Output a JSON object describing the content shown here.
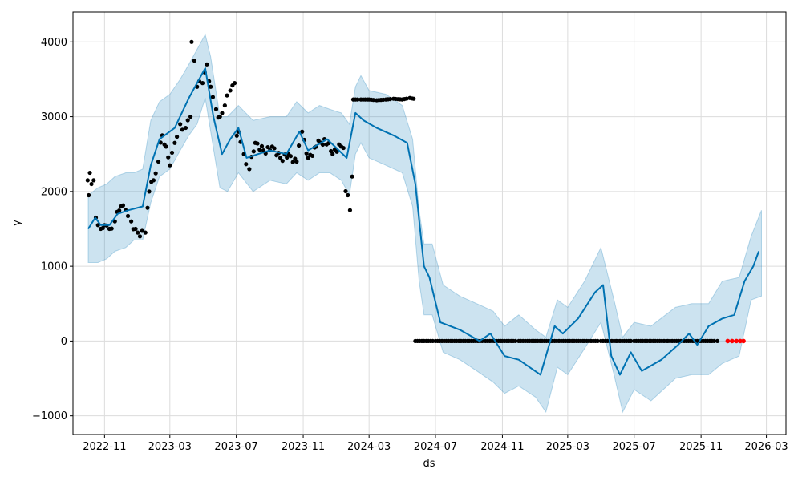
{
  "chart_data": {
    "type": "line",
    "title": "",
    "xlabel": "ds",
    "ylabel": "y",
    "grid": true,
    "legend": "none",
    "xlim": [
      "2022-09-04",
      "2026-04-06"
    ],
    "ylim": [
      -1250,
      4400
    ],
    "x_tick_labels": [
      "2022-11",
      "2023-03",
      "2023-07",
      "2023-11",
      "2024-03",
      "2024-07",
      "2024-11",
      "2025-03",
      "2025-07",
      "2025-11",
      "2026-03"
    ],
    "y_tick_values": [
      -1000,
      0,
      1000,
      2000,
      3000,
      4000
    ],
    "y_tick_labels": [
      "−1000",
      "0",
      "1000",
      "2000",
      "3000",
      "4000"
    ],
    "colors": {
      "forecast_line": "#0072b2",
      "interval_fill": "#0072b2",
      "observed_points": "#000000",
      "future_points": "#ff0000"
    },
    "series": [
      {
        "kind": "interval",
        "points": [
          [
            "2022-10-02",
            1050,
            1950
          ],
          [
            "2022-10-20",
            1050,
            2050
          ],
          [
            "2022-11-05",
            1100,
            2100
          ],
          [
            "2022-11-20",
            1200,
            2200
          ],
          [
            "2022-12-10",
            1250,
            2250
          ],
          [
            "2022-12-25",
            1350,
            2250
          ],
          [
            "2023-01-10",
            1350,
            2300
          ],
          [
            "2023-01-25",
            1850,
            2950
          ],
          [
            "2023-02-10",
            2200,
            3200
          ],
          [
            "2023-03-01",
            2300,
            3300
          ],
          [
            "2023-03-20",
            2550,
            3500
          ],
          [
            "2023-04-05",
            2750,
            3700
          ],
          [
            "2023-04-20",
            2900,
            3900
          ],
          [
            "2023-05-05",
            3250,
            4100
          ],
          [
            "2023-05-15",
            2800,
            3800
          ],
          [
            "2023-06-01",
            2050,
            3000
          ],
          [
            "2023-06-15",
            2000,
            3000
          ],
          [
            "2023-07-05",
            2250,
            3150
          ],
          [
            "2023-08-01",
            2000,
            2950
          ],
          [
            "2023-09-01",
            2150,
            3000
          ],
          [
            "2023-10-01",
            2100,
            3000
          ],
          [
            "2023-10-20",
            2250,
            3200
          ],
          [
            "2023-11-10",
            2150,
            3050
          ],
          [
            "2023-12-01",
            2250,
            3150
          ],
          [
            "2023-12-20",
            2250,
            3100
          ],
          [
            "2024-01-10",
            2150,
            3050
          ],
          [
            "2024-01-25",
            1950,
            2900
          ],
          [
            "2024-02-05",
            2500,
            3400
          ],
          [
            "2024-02-15",
            2650,
            3550
          ],
          [
            "2024-03-01",
            2450,
            3350
          ],
          [
            "2024-04-01",
            2350,
            3300
          ],
          [
            "2024-05-01",
            2250,
            3150
          ],
          [
            "2024-05-20",
            1800,
            2700
          ],
          [
            "2024-06-01",
            800,
            1750
          ],
          [
            "2024-06-10",
            350,
            1300
          ],
          [
            "2024-06-25",
            350,
            1300
          ],
          [
            "2024-07-15",
            -150,
            750
          ],
          [
            "2024-08-15",
            -250,
            600
          ],
          [
            "2024-09-15",
            -400,
            500
          ],
          [
            "2024-10-15",
            -550,
            400
          ],
          [
            "2024-11-05",
            -700,
            200
          ],
          [
            "2024-12-01",
            -600,
            350
          ],
          [
            "2025-01-01",
            -750,
            150
          ],
          [
            "2025-01-20",
            -950,
            50
          ],
          [
            "2025-02-10",
            -350,
            550
          ],
          [
            "2025-03-01",
            -450,
            450
          ],
          [
            "2025-04-01",
            -100,
            800
          ],
          [
            "2025-05-01",
            250,
            1250
          ],
          [
            "2025-05-25",
            -450,
            550
          ],
          [
            "2025-06-10",
            -950,
            50
          ],
          [
            "2025-07-01",
            -650,
            250
          ],
          [
            "2025-08-01",
            -800,
            200
          ],
          [
            "2025-09-15",
            -500,
            450
          ],
          [
            "2025-10-15",
            -450,
            500
          ],
          [
            "2025-11-15",
            -450,
            500
          ],
          [
            "2025-12-10",
            -300,
            800
          ],
          [
            "2026-01-10",
            -200,
            850
          ],
          [
            "2026-02-01",
            550,
            1400
          ],
          [
            "2026-02-20",
            600,
            1750
          ]
        ]
      },
      {
        "kind": "forecast",
        "points": [
          [
            "2022-10-02",
            1500
          ],
          [
            "2022-10-15",
            1650
          ],
          [
            "2022-10-25",
            1550
          ],
          [
            "2022-11-10",
            1550
          ],
          [
            "2022-11-25",
            1700
          ],
          [
            "2022-12-15",
            1750
          ],
          [
            "2023-01-10",
            1800
          ],
          [
            "2023-01-25",
            2350
          ],
          [
            "2023-02-10",
            2700
          ],
          [
            "2023-03-10",
            2850
          ],
          [
            "2023-04-05",
            3250
          ],
          [
            "2023-04-20",
            3450
          ],
          [
            "2023-05-05",
            3650
          ],
          [
            "2023-05-20",
            3000
          ],
          [
            "2023-06-05",
            2500
          ],
          [
            "2023-06-20",
            2700
          ],
          [
            "2023-07-05",
            2850
          ],
          [
            "2023-07-20",
            2450
          ],
          [
            "2023-08-10",
            2500
          ],
          [
            "2023-09-01",
            2550
          ],
          [
            "2023-10-01",
            2500
          ],
          [
            "2023-10-25",
            2800
          ],
          [
            "2023-11-10",
            2550
          ],
          [
            "2023-12-15",
            2700
          ],
          [
            "2024-01-20",
            2450
          ],
          [
            "2024-02-05",
            3050
          ],
          [
            "2024-02-20",
            2950
          ],
          [
            "2024-03-15",
            2850
          ],
          [
            "2024-04-15",
            2750
          ],
          [
            "2024-05-10",
            2650
          ],
          [
            "2024-05-25",
            2100
          ],
          [
            "2024-06-10",
            1000
          ],
          [
            "2024-06-20",
            850
          ],
          [
            "2024-07-10",
            250
          ],
          [
            "2024-08-15",
            150
          ],
          [
            "2024-09-20",
            0
          ],
          [
            "2024-10-10",
            100
          ],
          [
            "2024-11-05",
            -200
          ],
          [
            "2024-12-01",
            -250
          ],
          [
            "2025-01-10",
            -450
          ],
          [
            "2025-02-05",
            200
          ],
          [
            "2025-02-20",
            100
          ],
          [
            "2025-03-20",
            300
          ],
          [
            "2025-04-20",
            650
          ],
          [
            "2025-05-05",
            750
          ],
          [
            "2025-05-20",
            -200
          ],
          [
            "2025-06-05",
            -450
          ],
          [
            "2025-06-25",
            -150
          ],
          [
            "2025-07-15",
            -400
          ],
          [
            "2025-08-20",
            -250
          ],
          [
            "2025-09-20",
            -50
          ],
          [
            "2025-10-10",
            100
          ],
          [
            "2025-10-25",
            -50
          ],
          [
            "2025-11-15",
            200
          ],
          [
            "2025-12-10",
            300
          ],
          [
            "2026-01-01",
            350
          ],
          [
            "2026-01-20",
            800
          ],
          [
            "2026-02-05",
            1000
          ],
          [
            "2026-02-15",
            1200
          ]
        ]
      },
      {
        "kind": "observed",
        "points": [
          [
            "2022-10-01",
            2150
          ],
          [
            "2022-10-03",
            1950
          ],
          [
            "2022-10-05",
            2250
          ],
          [
            "2022-10-08",
            2100
          ],
          [
            "2022-10-12",
            2150
          ],
          [
            "2022-10-16",
            1650
          ],
          [
            "2022-10-20",
            1550
          ],
          [
            "2022-10-25",
            1500
          ],
          [
            "2022-11-01",
            1550
          ],
          [
            "2022-11-10",
            1500
          ],
          [
            "2022-11-20",
            1600
          ],
          [
            "2022-12-01",
            1800
          ],
          [
            "2022-12-10",
            1750
          ],
          [
            "2022-12-20",
            1600
          ],
          [
            "2022-12-28",
            1500
          ],
          [
            "2023-01-05",
            1400
          ],
          [
            "2023-01-15",
            1450
          ],
          [
            "2023-01-22",
            2000
          ],
          [
            "2023-01-30",
            2150
          ],
          [
            "2023-02-08",
            2400
          ],
          [
            "2023-02-15",
            2750
          ],
          [
            "2023-02-22",
            2600
          ],
          [
            "2023-03-01",
            2350
          ],
          [
            "2023-03-10",
            2650
          ],
          [
            "2023-03-20",
            2900
          ],
          [
            "2023-03-30",
            2850
          ],
          [
            "2023-04-08",
            3000
          ],
          [
            "2023-04-10",
            4000
          ],
          [
            "2023-04-15",
            3750
          ],
          [
            "2023-04-20",
            3400
          ],
          [
            "2023-04-30",
            3450
          ],
          [
            "2023-05-08",
            3700
          ],
          [
            "2023-05-15",
            3400
          ],
          [
            "2023-05-25",
            3100
          ],
          [
            "2023-06-01",
            3000
          ],
          [
            "2023-06-10",
            3150
          ],
          [
            "2023-06-20",
            3350
          ],
          [
            "2023-06-28",
            3450
          ],
          [
            "2023-07-05",
            2800
          ],
          [
            "2023-07-15",
            2500
          ],
          [
            "2023-07-25",
            2300
          ],
          [
            "2023-08-05",
            2650
          ],
          [
            "2023-08-20",
            2550
          ],
          [
            "2023-09-05",
            2600
          ],
          [
            "2023-09-20",
            2450
          ],
          [
            "2023-10-05",
            2500
          ],
          [
            "2023-10-20",
            2400
          ],
          [
            "2023-10-30",
            2800
          ],
          [
            "2023-11-10",
            2450
          ],
          [
            "2023-11-25",
            2600
          ],
          [
            "2023-12-10",
            2700
          ],
          [
            "2023-12-25",
            2500
          ],
          [
            "2024-01-10",
            2600
          ],
          [
            "2024-01-22",
            1950
          ],
          [
            "2024-01-26",
            1750
          ],
          [
            "2024-01-30",
            2200
          ],
          [
            "2024-02-01",
            3230
          ],
          [
            "2024-02-15",
            3230
          ],
          [
            "2024-03-01",
            3230
          ],
          [
            "2024-03-15",
            3220
          ],
          [
            "2024-04-01",
            3230
          ],
          [
            "2024-04-15",
            3240
          ],
          [
            "2024-05-01",
            3230
          ],
          [
            "2024-05-15",
            3250
          ],
          [
            "2024-05-22",
            3240
          ],
          [
            "2024-05-25",
            0
          ],
          [
            "2024-07-01",
            0
          ],
          [
            "2024-08-01",
            0
          ],
          [
            "2024-09-01",
            0
          ],
          [
            "2024-10-01",
            0
          ],
          [
            "2024-11-01",
            0
          ],
          [
            "2024-12-01",
            0
          ],
          [
            "2025-01-01",
            0
          ],
          [
            "2025-02-01",
            0
          ],
          [
            "2025-03-01",
            0
          ],
          [
            "2025-04-01",
            0
          ],
          [
            "2025-05-01",
            0
          ],
          [
            "2025-06-01",
            0
          ],
          [
            "2025-07-01",
            0
          ],
          [
            "2025-08-01",
            0
          ],
          [
            "2025-09-01",
            0
          ],
          [
            "2025-10-01",
            0
          ],
          [
            "2025-11-01",
            0
          ],
          [
            "2025-12-01",
            0
          ]
        ]
      },
      {
        "kind": "future_points",
        "points": [
          [
            "2025-12-20",
            0
          ],
          [
            "2025-12-28",
            0
          ],
          [
            "2026-01-05",
            0
          ],
          [
            "2026-01-12",
            0
          ],
          [
            "2026-01-18",
            0
          ]
        ]
      }
    ]
  }
}
